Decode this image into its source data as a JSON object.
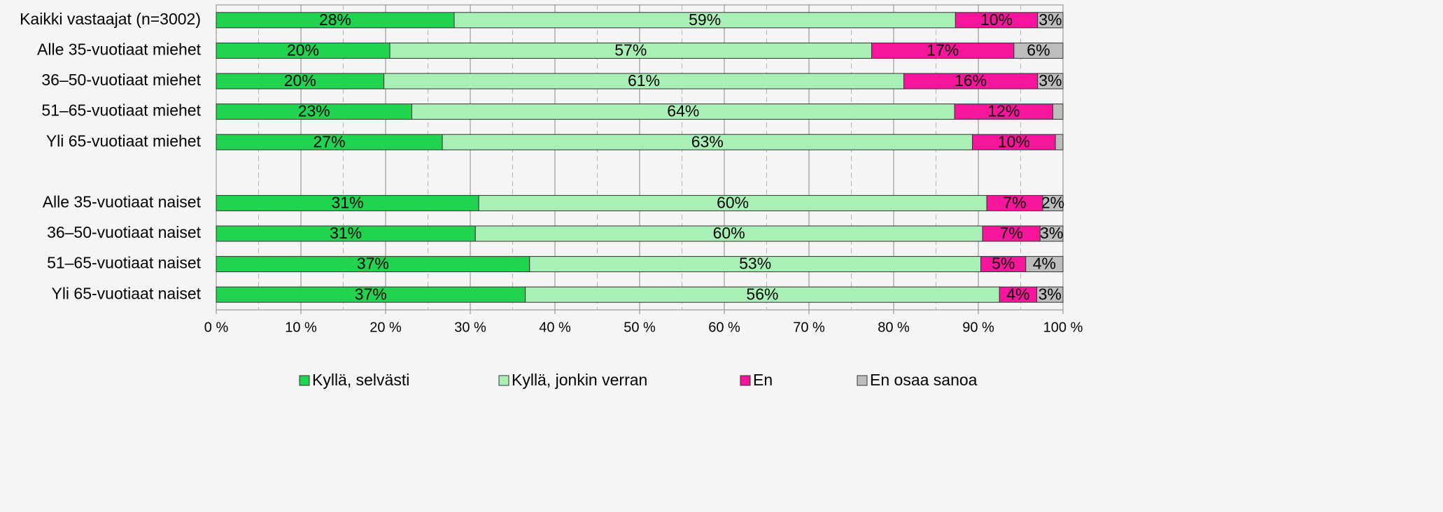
{
  "chart_data": {
    "type": "stacked-barh",
    "categories": [
      "Kaikki vastaajat (n=3002)",
      "Alle 35-vuotiaat miehet",
      "36–50-vuotiaat miehet",
      "51–65-vuotiaat miehet",
      "Yli 65-vuotiaat miehet",
      null,
      "Alle 35-vuotiaat naiset",
      "36–50-vuotiaat naiset",
      "51–65-vuotiaat naiset",
      "Yli 65-vuotiaat naiset"
    ],
    "series": [
      {
        "name": "Kyllä, selvästi",
        "color": "#22d34f",
        "values": [
          28.1,
          20.5,
          19.8,
          23.1,
          26.7,
          null,
          31.0,
          30.6,
          37.0,
          36.5
        ],
        "value_labels": [
          "28%",
          "20%",
          "20%",
          "23%",
          "27%",
          null,
          "31%",
          "31%",
          "37%",
          "37%"
        ]
      },
      {
        "name": "Kyllä, jonkin verran",
        "color": "#a8f0b6",
        "values": [
          59.2,
          56.9,
          61.4,
          64.1,
          62.6,
          null,
          60.0,
          59.9,
          53.3,
          56.0
        ],
        "value_labels": [
          "59%",
          "57%",
          "61%",
          "64%",
          "63%",
          null,
          "60%",
          "60%",
          "53%",
          "56%"
        ]
      },
      {
        "name": "En",
        "color": "#f7169b",
        "values": [
          9.7,
          16.8,
          15.8,
          11.6,
          9.8,
          null,
          6.6,
          6.8,
          5.3,
          4.4
        ],
        "value_labels": [
          "10%",
          "17%",
          "16%",
          "12%",
          "10%",
          null,
          "7%",
          "7%",
          "5%",
          "4%"
        ]
      },
      {
        "name": "En osaa sanoa",
        "color": "#bdbdbd",
        "values": [
          3.0,
          5.8,
          3.0,
          1.2,
          0.9,
          null,
          2.4,
          2.7,
          4.4,
          3.1
        ],
        "value_labels": [
          "3%",
          "6%",
          "3%",
          null,
          null,
          null,
          "2%",
          "3%",
          "4%",
          "3%"
        ]
      }
    ],
    "xlim": [
      0,
      100
    ],
    "xticks": [
      {
        "value": 0,
        "label": "0 %"
      },
      {
        "value": 10,
        "label": "10 %"
      },
      {
        "value": 20,
        "label": "20 %"
      },
      {
        "value": 30,
        "label": "30 %"
      },
      {
        "value": 40,
        "label": "40 %"
      },
      {
        "value": 50,
        "label": "50 %"
      },
      {
        "value": 60,
        "label": "60 %"
      },
      {
        "value": 70,
        "label": "70 %"
      },
      {
        "value": 80,
        "label": "80 %"
      },
      {
        "value": 90,
        "label": "90 %"
      },
      {
        "value": 100,
        "label": "100 %"
      }
    ],
    "minor_xticks": [
      5,
      15,
      25,
      35,
      45,
      55,
      65,
      75,
      85,
      95
    ],
    "grid": true,
    "legend": "bottom"
  }
}
